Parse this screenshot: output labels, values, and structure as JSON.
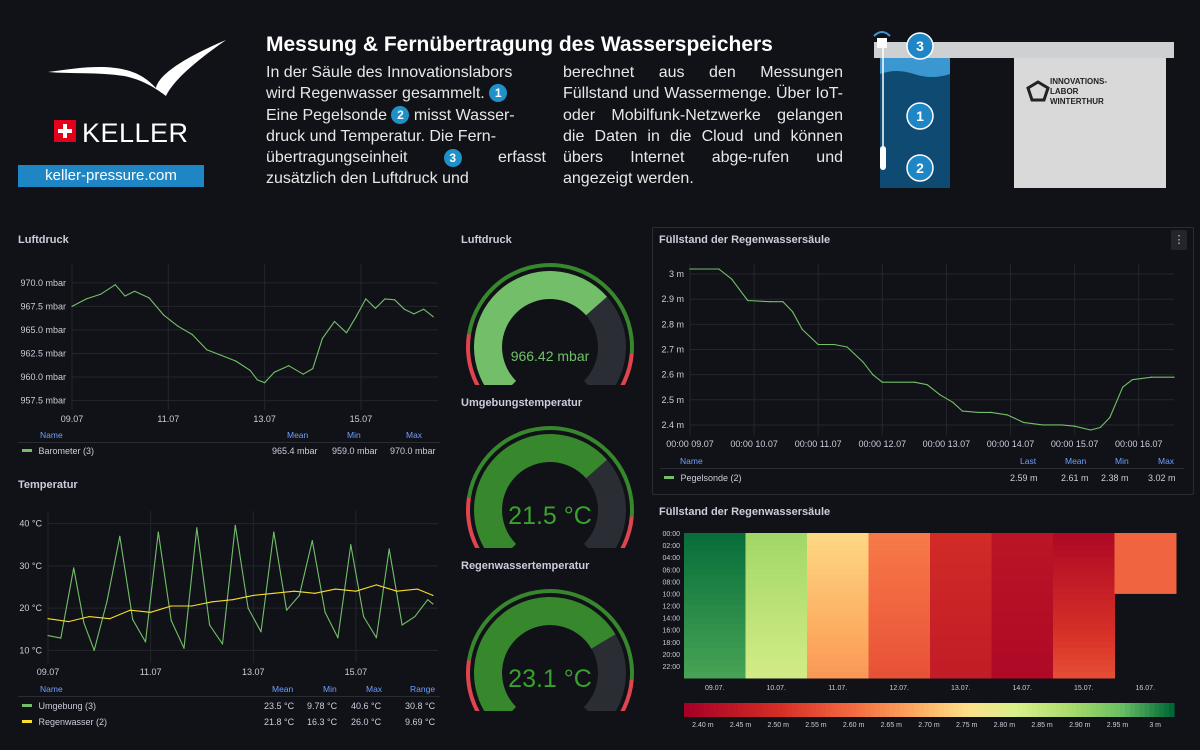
{
  "header": {
    "title": "Messung & Fernübertragung des Wasserspeichers",
    "brand": "KELLER",
    "website": "keller-pressure.com",
    "intro_col1": [
      "In der Säule des Innovationslabors",
      "wird Regenwasser gesammelt.",
      "Eine Pegelsonde",
      "misst Wasser-",
      "druck und Temperatur. Die Fern-",
      "übertragungseinheit",
      "erfasst",
      "zusätzlich den Luftdruck und"
    ],
    "intro_col2": "berechnet aus den Messungen Füllstand und Wassermenge. Über IoT- oder Mobilfunk-Netzwerke gelangen die Daten in die Cloud und können übers Internet abge-rufen und angezeigt werden.",
    "badges": [
      "1",
      "2",
      "3"
    ],
    "lab_sign": [
      "INNOVATIONS-",
      "LABOR",
      "WINTERTHUR"
    ]
  },
  "panels": {
    "luftdruck_ts_title": "Luftdruck",
    "temperatur_title": "Temperatur",
    "gauge1_title": "Luftdruck",
    "gauge2_title": "Umgebungstemperatur",
    "gauge3_title": "Regenwassertemperatur",
    "fuellstand_title": "Füllstand der Regenwassersäule",
    "heatmap_title": "Füllstand der Regenwassersäule",
    "menu_icon": "kebab-menu-icon"
  },
  "legends": {
    "luftdruck": {
      "headers": [
        "Name",
        "Mean",
        "Min",
        "Max"
      ],
      "rows": [
        {
          "name": "Barometer (3)",
          "values": [
            "965.4 mbar",
            "959.0 mbar",
            "970.0 mbar"
          ],
          "color": "#73bf69"
        }
      ]
    },
    "temperatur": {
      "headers": [
        "Name",
        "Mean",
        "Min",
        "Max",
        "Range"
      ],
      "rows": [
        {
          "name": "Umgebung (3)",
          "values": [
            "23.5 °C",
            "9.78 °C",
            "40.6 °C",
            "30.8 °C"
          ],
          "color": "#73bf69"
        },
        {
          "name": "Regenwasser (2)",
          "values": [
            "21.8 °C",
            "16.3 °C",
            "26.0 °C",
            "9.69 °C"
          ],
          "color": "#fade2a"
        }
      ]
    },
    "fuellstand": {
      "headers": [
        "Name",
        "Last",
        "Mean",
        "Min",
        "Max"
      ],
      "rows": [
        {
          "name": "Pegelsonde (2)",
          "values": [
            "2.59 m",
            "2.61 m",
            "2.38 m",
            "3.02 m"
          ],
          "color": "#73bf69"
        }
      ]
    }
  },
  "gauges": {
    "luftdruck": {
      "value": 966.42,
      "display": "966.42 mbar",
      "fraction": 0.68,
      "color": "#73bf69"
    },
    "umgebung": {
      "value": 21.5,
      "display": "21.5 °C",
      "fraction": 0.68,
      "color": "#37872d"
    },
    "regenwasser": {
      "value": 23.1,
      "display": "23.1 °C",
      "fraction": 0.72,
      "color": "#37872d"
    }
  },
  "chart_data": [
    {
      "type": "line",
      "title": "Luftdruck",
      "x_ticks": [
        "09.07",
        "11.07",
        "13.07",
        "15.07"
      ],
      "y_ticks": [
        "970.0 mbar",
        "967.5 mbar",
        "965.0 mbar",
        "962.5 mbar",
        "960.0 mbar",
        "957.5 mbar"
      ],
      "ylim": [
        956.5,
        972.0
      ],
      "xlim": [
        9.0,
        16.6
      ],
      "series": [
        {
          "name": "Barometer (3)",
          "color": "#73bf69",
          "x": [
            9.0,
            9.3,
            9.6,
            9.9,
            10.1,
            10.3,
            10.6,
            10.9,
            11.2,
            11.5,
            11.8,
            12.1,
            12.4,
            12.7,
            12.85,
            13.0,
            13.2,
            13.5,
            13.8,
            14.0,
            14.2,
            14.45,
            14.7,
            14.9,
            15.1,
            15.3,
            15.5,
            15.7,
            15.9,
            16.1,
            16.3,
            16.5
          ],
          "y": [
            967.5,
            968.3,
            968.8,
            969.8,
            968.6,
            969.1,
            968.4,
            966.6,
            965.4,
            964.5,
            962.9,
            962.3,
            961.7,
            960.7,
            959.7,
            959.4,
            960.5,
            961.2,
            960.3,
            960.9,
            964.1,
            965.9,
            964.7,
            966.4,
            968.3,
            967.3,
            968.3,
            968.2,
            967.2,
            966.7,
            967.2,
            966.4
          ]
        }
      ]
    },
    {
      "type": "line",
      "title": "Temperatur",
      "x_ticks": [
        "09.07",
        "11.07",
        "13.07",
        "15.07"
      ],
      "y_ticks": [
        "40 °C",
        "30 °C",
        "20 °C",
        "10 °C"
      ],
      "ylim": [
        7,
        43
      ],
      "xlim": [
        9.0,
        16.6
      ],
      "series": [
        {
          "name": "Umgebung (3)",
          "color": "#73bf69",
          "x": [
            9.0,
            9.25,
            9.5,
            9.7,
            9.9,
            10.15,
            10.4,
            10.65,
            10.9,
            11.15,
            11.4,
            11.65,
            11.9,
            12.15,
            12.4,
            12.65,
            12.9,
            13.15,
            13.4,
            13.65,
            13.9,
            14.15,
            14.4,
            14.65,
            14.9,
            15.15,
            15.4,
            15.65,
            15.9,
            16.15,
            16.4,
            16.5
          ],
          "y": [
            13.5,
            12.9,
            29.5,
            16.5,
            10.0,
            21.6,
            37.0,
            17.3,
            12.0,
            38.0,
            17.1,
            10.5,
            39.0,
            16.0,
            11.5,
            39.6,
            20.0,
            14.4,
            38.0,
            19.5,
            23.0,
            36.0,
            19.0,
            13.0,
            35.0,
            18.0,
            13.0,
            34.0,
            16.0,
            18.0,
            22.0,
            21.0
          ]
        },
        {
          "name": "Regenwasser (2)",
          "color": "#fade2a",
          "x": [
            9.0,
            9.4,
            9.8,
            10.2,
            10.6,
            11.0,
            11.4,
            11.8,
            12.2,
            12.6,
            13.0,
            13.4,
            13.8,
            14.2,
            14.6,
            15.0,
            15.4,
            15.8,
            16.2,
            16.5
          ],
          "y": [
            17.5,
            16.8,
            18.0,
            17.5,
            19.5,
            19.0,
            20.5,
            20.5,
            21.5,
            22.0,
            23.0,
            23.5,
            24.0,
            23.5,
            24.5,
            24.0,
            25.5,
            24.0,
            24.5,
            23.0
          ]
        }
      ]
    },
    {
      "type": "line",
      "title": "Füllstand der Regenwassersäule",
      "x_ticks": [
        "00:00 09.07",
        "00:00 10.07",
        "00:00 11.07",
        "00:00 12.07",
        "00:00 13.07",
        "00:00 14.07",
        "00:00 15.07",
        "00:00 16.07"
      ],
      "y_ticks": [
        "3 m",
        "2.9 m",
        "2.8 m",
        "2.7 m",
        "2.6 m",
        "2.5 m",
        "2.4 m"
      ],
      "ylim": [
        2.36,
        3.04
      ],
      "xlim": [
        9.0,
        16.55
      ],
      "series": [
        {
          "name": "Pegelsonde (2)",
          "color": "#73bf69",
          "x": [
            9.0,
            9.45,
            9.65,
            9.9,
            10.25,
            10.45,
            10.6,
            10.75,
            11.0,
            11.25,
            11.45,
            11.7,
            11.85,
            12.0,
            12.5,
            12.7,
            12.9,
            13.1,
            13.25,
            13.5,
            13.7,
            13.95,
            14.2,
            14.5,
            14.8,
            15.0,
            15.25,
            15.4,
            15.55,
            15.75,
            15.9,
            16.2,
            16.55
          ],
          "y": [
            3.02,
            3.02,
            2.98,
            2.895,
            2.89,
            2.89,
            2.85,
            2.78,
            2.72,
            2.72,
            2.71,
            2.65,
            2.6,
            2.57,
            2.57,
            2.56,
            2.52,
            2.49,
            2.455,
            2.45,
            2.45,
            2.44,
            2.41,
            2.4,
            2.4,
            2.395,
            2.38,
            2.39,
            2.43,
            2.55,
            2.58,
            2.59,
            2.59
          ]
        }
      ]
    },
    {
      "type": "heatmap",
      "title": "Füllstand der Regenwassersäule",
      "x_categories": [
        "09.07.",
        "10.07.",
        "11.07.",
        "12.07.",
        "13.07.",
        "14.07.",
        "15.07.",
        "16.07."
      ],
      "y_ticks": [
        "00:00",
        "02:00",
        "04:00",
        "06:00",
        "08:00",
        "10:00",
        "12:00",
        "14:00",
        "16:00",
        "18:00",
        "20:00",
        "22:00"
      ],
      "scale_ticks": [
        "2.40 m",
        "2.45 m",
        "2.50 m",
        "2.55 m",
        "2.60 m",
        "2.65 m",
        "2.70 m",
        "2.75 m",
        "2.80 m",
        "2.85 m",
        "2.90 m",
        "2.95 m",
        "3 m"
      ],
      "scale_range": [
        2.375,
        3.025
      ],
      "columns": [
        {
          "start": 3.02,
          "end": 2.98
        },
        {
          "start": 2.9,
          "end": 2.83
        },
        {
          "start": 2.74,
          "end": 2.66
        },
        {
          "start": 2.62,
          "end": 2.56
        },
        {
          "start": 2.49,
          "end": 2.45
        },
        {
          "start": 2.43,
          "end": 2.4
        },
        {
          "start": 2.4,
          "end": 2.55
        },
        {
          "start": 2.59,
          "end": 2.59,
          "partial_hours": 10
        }
      ]
    }
  ]
}
